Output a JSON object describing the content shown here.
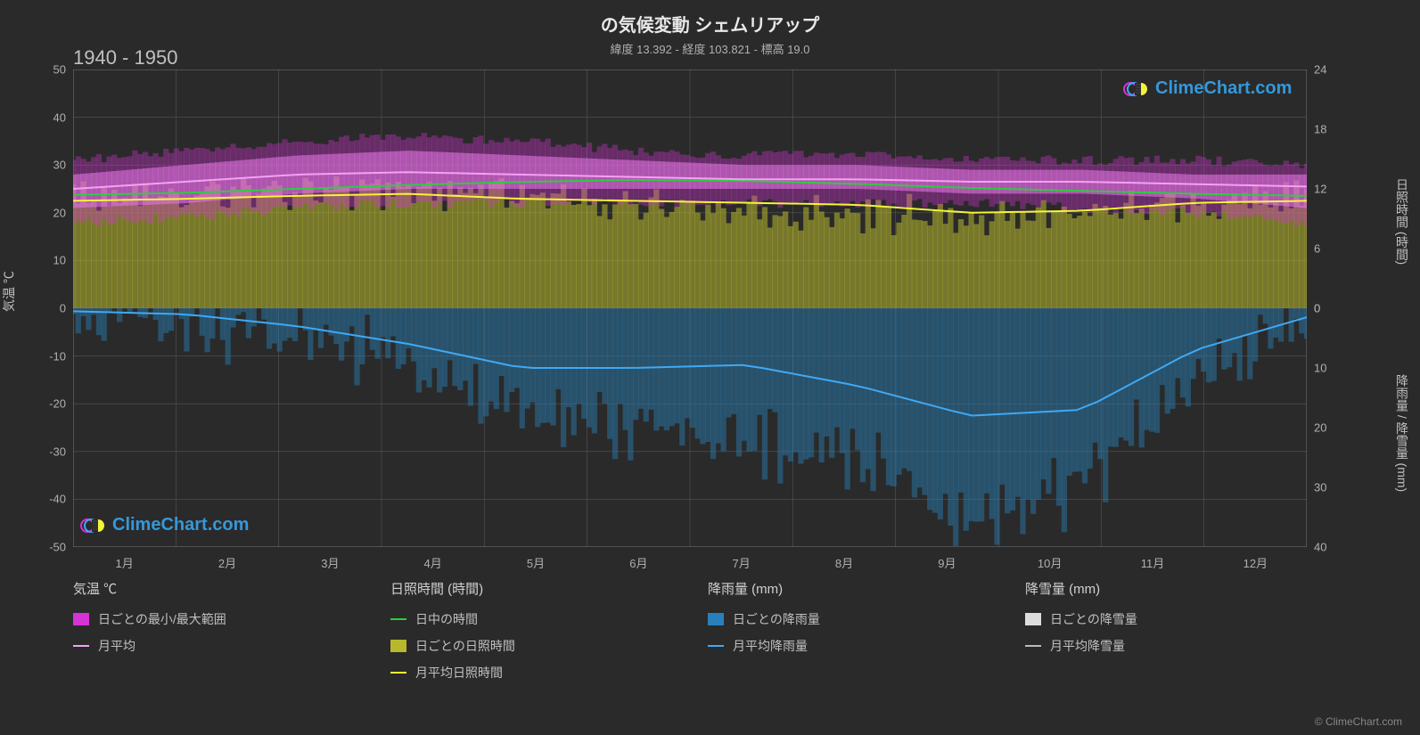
{
  "title": "の気候変動 シェムリアップ",
  "subtitle": "緯度 13.392 - 経度 103.821 - 標高 19.0",
  "year_range": "1940 - 1950",
  "watermark_text": "ClimeChart.com",
  "credit": "© ClimeChart.com",
  "chart": {
    "background_color": "#2a2a2a",
    "grid_color": "#555555",
    "axis_text_color": "#b0b0b0",
    "left_axis": {
      "label": "気温 ℃",
      "min": -50,
      "max": 50,
      "ticks": [
        -50,
        -40,
        -30,
        -20,
        -10,
        0,
        10,
        20,
        30,
        40,
        50
      ]
    },
    "right_axis_top": {
      "label": "日照時間 (時間)",
      "min": 0,
      "max": 24,
      "ticks": [
        0,
        6,
        12,
        18,
        24
      ],
      "y_frac_top": 0.0,
      "y_frac_bottom": 0.5
    },
    "right_axis_bottom": {
      "label": "降雨量 / 降雪量 (mm)",
      "min": 0,
      "max": 40,
      "ticks": [
        0,
        10,
        20,
        30,
        40
      ],
      "y_frac_top": 0.5,
      "y_frac_bottom": 1.0
    },
    "x_axis": {
      "labels": [
        "1月",
        "2月",
        "3月",
        "4月",
        "5月",
        "6月",
        "7月",
        "8月",
        "9月",
        "10月",
        "11月",
        "12月"
      ]
    },
    "series": {
      "temp_range": {
        "color": "#d633d6",
        "color_light": "#e878e8",
        "min_band": [
          18,
          19,
          21,
          22,
          22,
          22,
          22,
          22,
          22,
          21,
          20,
          18
        ],
        "max_band": [
          31,
          33,
          35,
          36,
          35,
          33,
          32,
          32,
          31,
          31,
          31,
          30
        ],
        "inner_min": [
          21,
          22,
          24,
          25,
          25,
          25,
          25,
          25,
          24,
          24,
          23,
          21
        ],
        "inner_max": [
          28,
          30,
          32,
          33,
          32,
          31,
          30,
          30,
          29,
          29,
          28,
          28
        ]
      },
      "temp_mean": {
        "color": "#f5a0f5",
        "values": [
          25,
          26.5,
          28,
          28.5,
          28,
          27.5,
          27,
          27,
          26.5,
          26.5,
          26,
          25.5
        ],
        "width": 2
      },
      "daylight": {
        "color": "#2ecc40",
        "values": [
          11.4,
          11.6,
          12.0,
          12.4,
          12.7,
          12.9,
          12.8,
          12.5,
          12.1,
          11.8,
          11.5,
          11.3
        ],
        "width": 2
      },
      "sunshine_daily_band": {
        "color": "#b8b82e",
        "color_alpha": "rgba(184,184,46,0.55)",
        "max_band": [
          11.2,
          11.4,
          11.8,
          12.0,
          11.5,
          10.5,
          10.0,
          9.5,
          9.0,
          9.5,
          10.5,
          11.0
        ]
      },
      "sunshine_mean": {
        "color": "#f4f43a",
        "values": [
          10.8,
          11.0,
          11.3,
          11.5,
          11.0,
          10.8,
          10.6,
          10.4,
          9.6,
          9.8,
          10.6,
          10.8
        ],
        "width": 2
      },
      "rain_daily_band": {
        "color": "#1f77b4",
        "color_alpha": "rgba(41,128,185,0.45)",
        "max_band": [
          1,
          2,
          5,
          10,
          18,
          20,
          22,
          25,
          35,
          30,
          12,
          3
        ]
      },
      "rain_mean": {
        "color": "#3fa9f5",
        "values": [
          0.5,
          1,
          3,
          6,
          10,
          10,
          9.5,
          13,
          18,
          17,
          7,
          1.5
        ],
        "width": 2
      },
      "snow_daily": {
        "color": "#dddddd"
      },
      "snow_mean": {
        "color": "#bbbbbb"
      }
    }
  },
  "legend": {
    "columns": [
      {
        "title": "気温 ℃",
        "items": [
          {
            "type": "swatch",
            "color": "#d633d6",
            "label": "日ごとの最小/最大範囲"
          },
          {
            "type": "line",
            "color": "#f5a0f5",
            "label": "月平均"
          }
        ]
      },
      {
        "title": "日照時間 (時間)",
        "items": [
          {
            "type": "line",
            "color": "#2ecc40",
            "label": "日中の時間"
          },
          {
            "type": "swatch",
            "color": "#b8b82e",
            "label": "日ごとの日照時間"
          },
          {
            "type": "line",
            "color": "#f4f43a",
            "label": "月平均日照時間"
          }
        ]
      },
      {
        "title": "降雨量 (mm)",
        "items": [
          {
            "type": "swatch",
            "color": "#2980b9",
            "label": "日ごとの降雨量"
          },
          {
            "type": "line",
            "color": "#3fa9f5",
            "label": "月平均降雨量"
          }
        ]
      },
      {
        "title": "降雪量 (mm)",
        "items": [
          {
            "type": "swatch",
            "color": "#dddddd",
            "label": "日ごとの降雪量"
          },
          {
            "type": "line",
            "color": "#bbbbbb",
            "label": "月平均降雪量"
          }
        ]
      }
    ]
  }
}
